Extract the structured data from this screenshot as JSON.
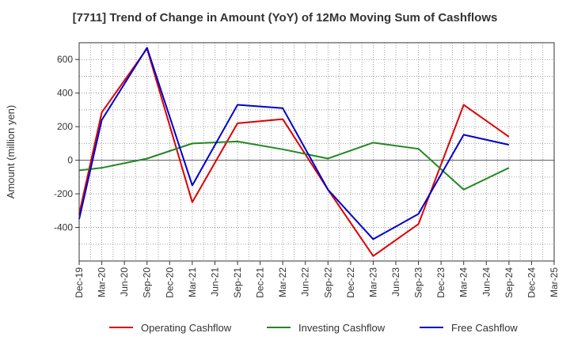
{
  "chart_data": {
    "type": "line",
    "title": "[7711]  Trend of Change in Amount (YoY) of 12Mo Moving Sum of Cashflows",
    "xlabel": "",
    "ylabel": "Amount (million yen)",
    "ylim": [
      -600,
      700
    ],
    "yticks": [
      -400,
      -200,
      0,
      200,
      400,
      600
    ],
    "grid": true,
    "legend_position": "bottom",
    "categories": [
      "Dec-19",
      "Mar-20",
      "Jun-20",
      "Sep-20",
      "Dec-20",
      "Mar-21",
      "Jun-21",
      "Sep-21",
      "Dec-21",
      "Mar-22",
      "Jun-22",
      "Sep-22",
      "Dec-22",
      "Mar-23",
      "Jun-23",
      "Sep-23",
      "Dec-23",
      "Mar-24",
      "Jun-24",
      "Sep-24",
      "Dec-24",
      "Mar-25"
    ],
    "series": [
      {
        "name": "Operating Cashflow",
        "color": "#dd0000",
        "values": [
          -320,
          285,
          null,
          665,
          null,
          -250,
          null,
          220,
          null,
          245,
          null,
          -175,
          null,
          -570,
          null,
          -380,
          null,
          330,
          null,
          140,
          null,
          null
        ]
      },
      {
        "name": "Investing Cashflow",
        "color": "#228822",
        "values": [
          -60,
          -45,
          null,
          10,
          null,
          100,
          null,
          112,
          null,
          65,
          null,
          10,
          null,
          105,
          null,
          68,
          null,
          -175,
          null,
          -45,
          null,
          null
        ]
      },
      {
        "name": "Free Cashflow",
        "color": "#0000cc",
        "values": [
          -350,
          240,
          null,
          670,
          null,
          -150,
          null,
          330,
          null,
          310,
          null,
          -175,
          null,
          -470,
          null,
          -320,
          null,
          152,
          null,
          92,
          null,
          null
        ]
      }
    ]
  }
}
